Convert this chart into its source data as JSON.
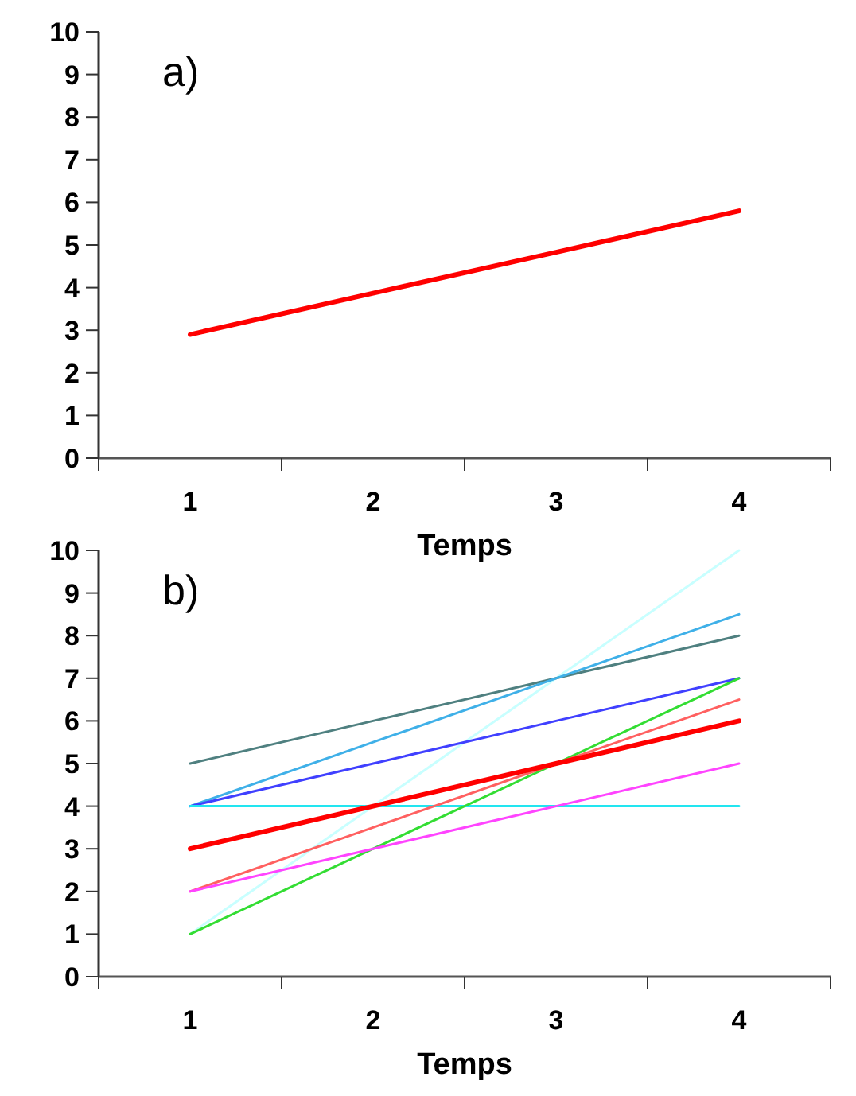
{
  "chart_data": [
    {
      "type": "line",
      "xlabel": "Temps",
      "annotations": [
        "a)"
      ],
      "categories": [
        "1",
        "2",
        "3",
        "4"
      ],
      "ylim": [
        0,
        10
      ],
      "yticks": [
        0,
        1,
        2,
        3,
        4,
        5,
        6,
        7,
        8,
        9,
        10
      ],
      "grid": false,
      "marker": "none",
      "line_style": "solid",
      "series": [
        {
          "color": "#ff0000",
          "values": [
            2.9,
            3.87,
            4.83,
            5.8
          ]
        }
      ]
    },
    {
      "type": "line",
      "xlabel": "Temps",
      "annotations": [
        "b)"
      ],
      "categories": [
        "1",
        "2",
        "3",
        "4"
      ],
      "ylim": [
        0,
        10
      ],
      "yticks": [
        0,
        1,
        2,
        3,
        4,
        5,
        6,
        7,
        8,
        9,
        10
      ],
      "grid": false,
      "marker": "none",
      "line_style": "solid",
      "series": [
        {
          "color": "#c8ffff",
          "values": [
            1,
            4,
            7,
            10
          ]
        },
        {
          "color": "#4f8080",
          "values": [
            5,
            6,
            7,
            8
          ]
        },
        {
          "color": "#3fb0e8",
          "values": [
            4,
            5.5,
            7,
            8.5
          ]
        },
        {
          "color": "#4040ff",
          "values": [
            4,
            5,
            6,
            7
          ]
        },
        {
          "color": "#22e5f0",
          "values": [
            4,
            4,
            4,
            4
          ]
        },
        {
          "color": "#33dd33",
          "values": [
            1,
            3,
            5,
            7
          ]
        },
        {
          "color": "#ff6060",
          "values": [
            2,
            3.5,
            5,
            6.5
          ]
        },
        {
          "color": "#ff44ff",
          "values": [
            2,
            3,
            4,
            5
          ]
        },
        {
          "color": "#ff0000",
          "values": [
            3,
            4,
            5,
            6
          ]
        }
      ]
    }
  ]
}
